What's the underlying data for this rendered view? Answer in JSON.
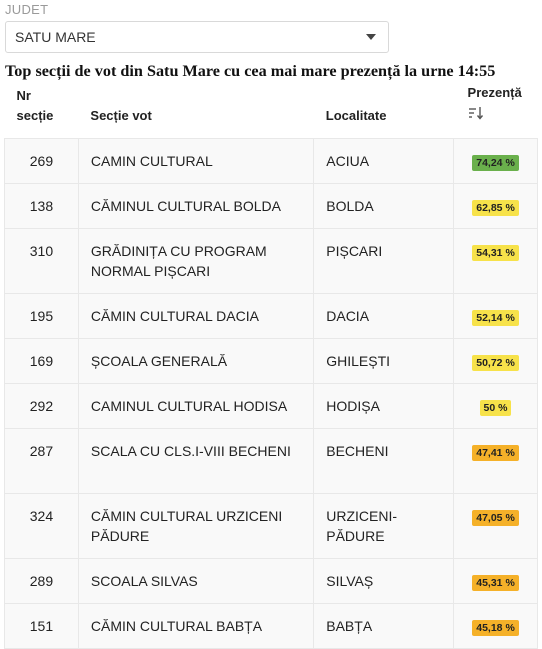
{
  "filter": {
    "label": "JUDET",
    "selected": "SATU MARE"
  },
  "title": "Top secții de vot din Satu Mare cu cea mai mare prezență la urne 14:55",
  "table": {
    "headers": {
      "nr_line1": "Nr",
      "nr_line2": "secție",
      "sectie": "Secție vot",
      "localitate": "Localitate",
      "prezenta": "Prezență",
      "sort_icon": "sort-desc-icon"
    },
    "rows": [
      {
        "nr": "269",
        "sectie": "CAMIN CULTURAL",
        "localitate": "ACIUA",
        "prezenta": "74,24 %",
        "color": "#6ab04c"
      },
      {
        "nr": "138",
        "sectie": "CĂMINUL CULTURAL BOLDA",
        "localitate": "BOLDA",
        "prezenta": "62,85 %",
        "color": "#f7e24a"
      },
      {
        "nr": "310",
        "sectie": "GRĂDINIȚA CU PROGRAM NORMAL PIȘCARI",
        "localitate": "PIȘCARI",
        "prezenta": "54,31 %",
        "color": "#f7e24a"
      },
      {
        "nr": "195",
        "sectie": "CĂMIN CULTURAL DACIA",
        "localitate": "DACIA",
        "prezenta": "52,14 %",
        "color": "#f7e24a"
      },
      {
        "nr": "169",
        "sectie": "ȘCOALA GENERALĂ",
        "localitate": "GHILEȘTI",
        "prezenta": "50,72 %",
        "color": "#f7e24a"
      },
      {
        "nr": "292",
        "sectie": "CAMINUL CULTURAL HODISA",
        "localitate": "HODIȘA",
        "prezenta": "50 %",
        "color": "#f7e24a"
      },
      {
        "nr": "287",
        "sectie": "SCALA CU CLS.I-VIII BECHENI",
        "localitate": "BECHENI",
        "prezenta": "47,41 %",
        "color": "#f5b129"
      },
      {
        "nr": "324",
        "sectie": "CĂMIN CULTURAL URZICENI PĂDURE",
        "localitate": "URZICENI-PĂDURE",
        "prezenta": "47,05 %",
        "color": "#f5b129"
      },
      {
        "nr": "289",
        "sectie": "SCOALA SILVAS",
        "localitate": "SILVAȘ",
        "prezenta": "45,31 %",
        "color": "#f5b129"
      },
      {
        "nr": "151",
        "sectie": "CĂMIN CULTURAL BABȚA",
        "localitate": "BABȚA",
        "prezenta": "45,18 %",
        "color": "#f5b129"
      }
    ]
  }
}
